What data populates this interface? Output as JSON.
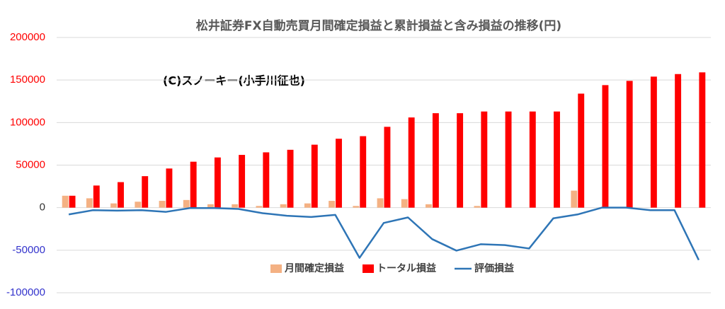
{
  "chart_data": {
    "type": "bar",
    "title": "松井証券FX自動売買月間確定損益と累計損益と含み損益の推移(円)",
    "annotations": [
      "(C)スノーキー(小手川征也)"
    ],
    "categories": [
      null,
      null,
      null,
      null,
      null,
      null,
      null,
      null,
      null,
      null,
      null,
      null,
      null,
      null,
      null,
      null,
      null,
      null,
      null,
      null,
      null,
      null,
      null,
      null,
      null,
      null,
      null
    ],
    "series": [
      {
        "name": "月間確定損益",
        "type": "bar",
        "color": "#f4b183",
        "values": [
          14000,
          11000,
          5000,
          7000,
          8000,
          9000,
          4000,
          4000,
          2000,
          4000,
          5000,
          8000,
          2000,
          11000,
          10000,
          4000,
          0,
          2000,
          0,
          0,
          0,
          20000,
          0,
          0,
          0,
          0,
          0
        ]
      },
      {
        "name": "トータル損益",
        "type": "bar",
        "color": "#ff0000",
        "values": [
          14000,
          26000,
          30000,
          37000,
          46000,
          54000,
          59000,
          62000,
          65000,
          68000,
          74000,
          81000,
          84000,
          95000,
          106000,
          111000,
          111000,
          113000,
          113000,
          113000,
          113000,
          134000,
          144000,
          149000,
          154000,
          157000,
          159000
        ]
      },
      {
        "name": "評価損益",
        "type": "line",
        "color": "#2e75b6",
        "values": [
          -8000,
          -3000,
          -3500,
          -3000,
          -5000,
          -500,
          -500,
          -1500,
          -6500,
          -9500,
          -11000,
          -8500,
          -59000,
          -18000,
          -11500,
          -37000,
          -50500,
          -43000,
          -44000,
          -48000,
          -12500,
          -8000,
          0,
          0,
          -3000,
          -3000,
          -61500
        ]
      }
    ],
    "ylim": [
      -100000,
      200000
    ],
    "yticks": [
      -100000,
      -50000,
      0,
      50000,
      100000,
      150000,
      200000
    ],
    "grid": true,
    "legend": "bottom"
  }
}
